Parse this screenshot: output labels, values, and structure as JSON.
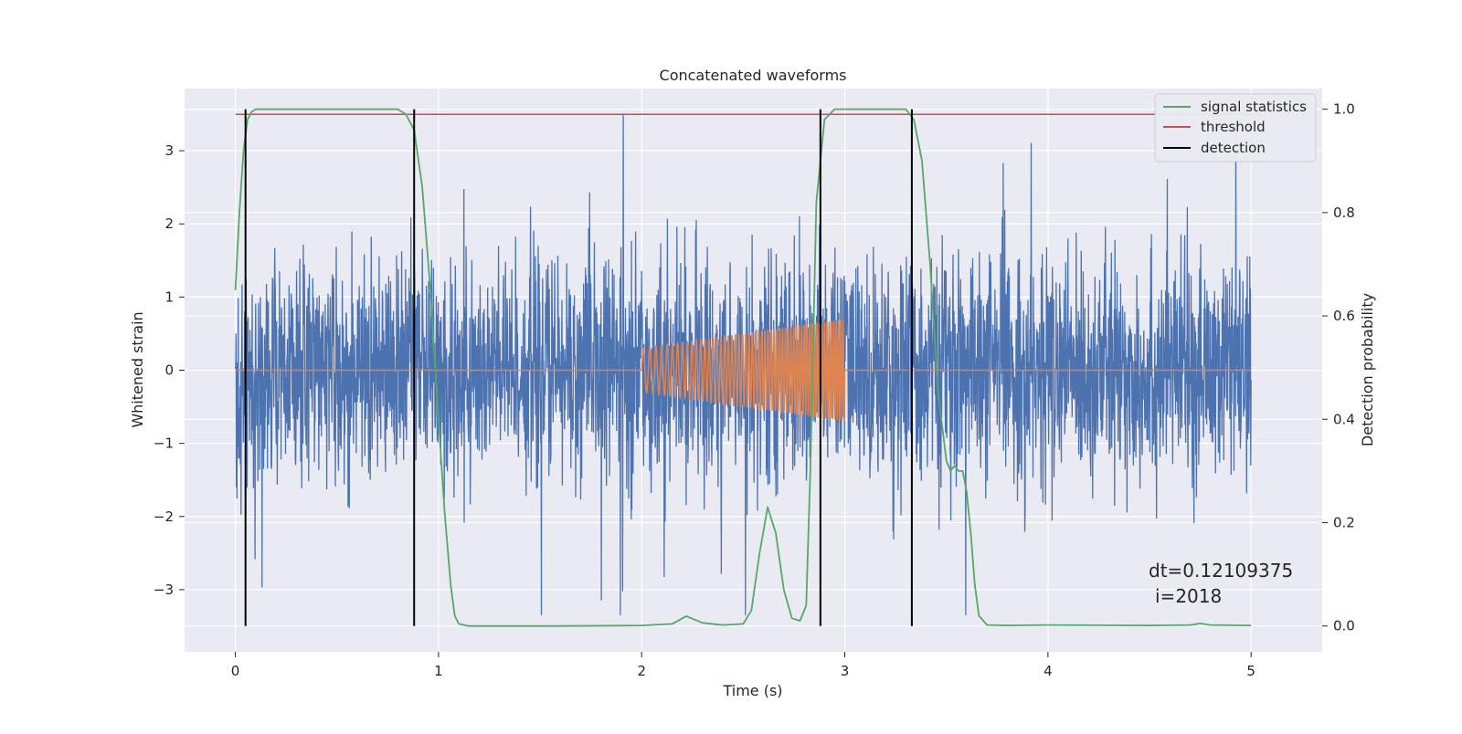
{
  "chart_data": {
    "type": "line",
    "title": "Concatenated waveforms",
    "xlabel": "Time (s)",
    "ylabel_left": "Whitened strain",
    "ylabel_right": "Detection probability",
    "xlim": [
      -0.25,
      5.35
    ],
    "ylim_left": [
      -3.85,
      3.85
    ],
    "ylim_right": [
      -0.05,
      1.04
    ],
    "x_ticks": [
      0,
      1,
      2,
      3,
      4,
      5
    ],
    "x_tick_labels": [
      "0",
      "1",
      "2",
      "3",
      "4",
      "5"
    ],
    "left_ticks": [
      -3,
      -2,
      -1,
      0,
      1,
      2,
      3
    ],
    "left_tick_labels": [
      "−3",
      "−2",
      "−1",
      "0",
      "1",
      "2",
      "3"
    ],
    "right_ticks": [
      0.0,
      0.2,
      0.4,
      0.6,
      0.8,
      1.0
    ],
    "right_tick_labels": [
      "0.0",
      "0.2",
      "0.4",
      "0.6",
      "0.8",
      "1.0"
    ],
    "grid": true,
    "legend_position": "top-right",
    "annotation": [
      "dt=0.12109375",
      "i=2018"
    ],
    "series": [
      {
        "name": "",
        "axis": "left",
        "color": "#4c72b0",
        "kind": "noise",
        "x_range": [
          0,
          5
        ],
        "amplitude_std": 0.75,
        "peak_min": -3.35,
        "peak_max": 3.5
      },
      {
        "name": "",
        "axis": "left",
        "color": "#dd8452",
        "kind": "chirp",
        "baseline_range": [
          0,
          5
        ],
        "burst_range": [
          2.0,
          3.0
        ],
        "amplitude_start": 0.3,
        "amplitude_end": 0.7,
        "freq_start": 30,
        "freq_end": 90
      },
      {
        "name": "signal statistics",
        "axis": "right",
        "color": "#55a868",
        "x": [
          0.0,
          0.02,
          0.04,
          0.06,
          0.08,
          0.1,
          0.14,
          0.2,
          0.4,
          0.6,
          0.8,
          0.84,
          0.88,
          0.92,
          0.96,
          1.0,
          1.03,
          1.06,
          1.08,
          1.1,
          1.15,
          1.3,
          1.6,
          2.0,
          2.15,
          2.22,
          2.3,
          2.4,
          2.5,
          2.54,
          2.58,
          2.62,
          2.66,
          2.7,
          2.74,
          2.78,
          2.81,
          2.83,
          2.86,
          2.9,
          2.95,
          3.0,
          3.1,
          3.3,
          3.34,
          3.38,
          3.42,
          3.46,
          3.5,
          3.52,
          3.54,
          3.56,
          3.58,
          3.6,
          3.62,
          3.64,
          3.66,
          3.7,
          3.8,
          4.0,
          4.5,
          4.7,
          4.75,
          4.8,
          5.0
        ],
        "values": [
          0.65,
          0.8,
          0.92,
          0.98,
          0.995,
          1.0,
          1.0,
          1.0,
          1.0,
          1.0,
          1.0,
          0.99,
          0.96,
          0.85,
          0.65,
          0.4,
          0.22,
          0.08,
          0.02,
          0.004,
          0.0,
          0.0,
          0.0,
          0.001,
          0.004,
          0.019,
          0.006,
          0.002,
          0.004,
          0.03,
          0.14,
          0.23,
          0.18,
          0.07,
          0.015,
          0.01,
          0.04,
          0.3,
          0.82,
          0.98,
          1.0,
          1.0,
          1.0,
          1.0,
          0.98,
          0.9,
          0.7,
          0.45,
          0.32,
          0.3,
          0.31,
          0.3,
          0.3,
          0.26,
          0.18,
          0.08,
          0.02,
          0.002,
          0.001,
          0.002,
          0.001,
          0.002,
          0.005,
          0.002,
          0.001
        ]
      },
      {
        "name": "threshold",
        "axis": "right",
        "color": "#c44e52",
        "x": [
          0,
          5
        ],
        "values": [
          0.99,
          0.99
        ]
      },
      {
        "name": "detection",
        "axis": "right",
        "color": "#000000",
        "kind": "vlines",
        "x": [
          0.05,
          0.88,
          2.88,
          3.33
        ],
        "ymin": 0.0,
        "ymax": 1.0
      }
    ]
  }
}
